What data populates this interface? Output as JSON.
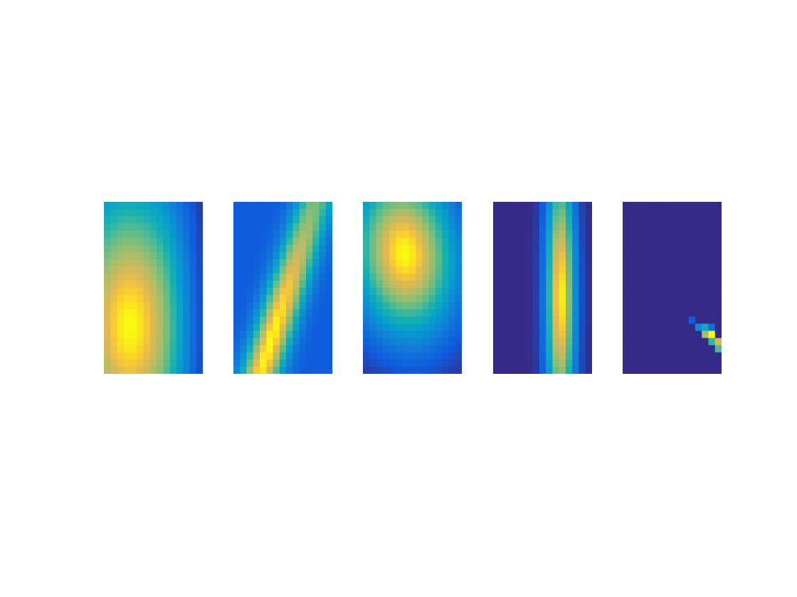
{
  "chart_data": [
    {
      "type": "heatmap",
      "colormap": "parula",
      "grid": [
        15,
        24
      ],
      "pattern": {
        "shape": "blob",
        "cx": 0.26,
        "cy": 0.72,
        "sx": 0.42,
        "sy": 0.55,
        "rot": 0,
        "base": 0.05,
        "amp": 0.95,
        "rightFade": true
      }
    },
    {
      "type": "heatmap",
      "colormap": "parula",
      "grid": [
        15,
        24
      ],
      "pattern": {
        "shape": "ridge",
        "x0": 0.52,
        "y0": 0.55,
        "slope": -0.55,
        "width": 0.14,
        "cx": 0.65,
        "cy": 0.82,
        "peakSpread": 0.55,
        "base": 0.12,
        "amp": 0.88
      }
    },
    {
      "type": "heatmap",
      "colormap": "parula",
      "grid": [
        15,
        24
      ],
      "pattern": {
        "shape": "blob",
        "cx": 0.42,
        "cy": 0.3,
        "sx": 0.36,
        "sy": 0.32,
        "rot": -0.45,
        "base": 0.0,
        "amp": 1.0,
        "rightFade": false
      }
    },
    {
      "type": "heatmap",
      "colormap": "parula",
      "grid": [
        15,
        24
      ],
      "pattern": {
        "shape": "stripe",
        "cx": 0.68,
        "cy": 0.55,
        "sx": 0.1,
        "sy": 0.42,
        "base": 0.0,
        "amp": 1.0
      }
    },
    {
      "type": "heatmap",
      "colormap": "parula",
      "grid": [
        15,
        24
      ],
      "pattern": {
        "shape": "sparse",
        "cells": [
          [
            10,
            16,
            0.12
          ],
          [
            11,
            17,
            0.3
          ],
          [
            12,
            17,
            0.45
          ],
          [
            12,
            18,
            0.75
          ],
          [
            13,
            18,
            1.0
          ],
          [
            13,
            19,
            0.55
          ],
          [
            14,
            19,
            0.85
          ],
          [
            14,
            20,
            0.6
          ],
          [
            13,
            17,
            0.2
          ]
        ]
      }
    }
  ]
}
